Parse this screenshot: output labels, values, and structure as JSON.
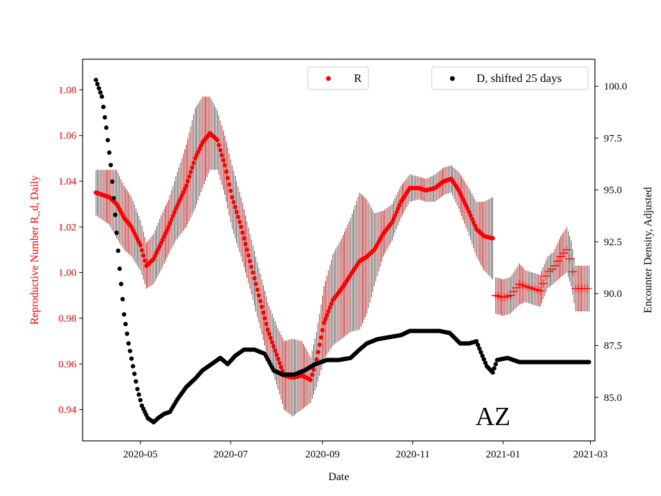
{
  "chart_data": {
    "type": "scatter",
    "title": "",
    "state_label": "AZ",
    "xlabel": "Date",
    "ylabel_left": "Reproductive Number R_d, Daily",
    "ylabel_right": "Encounter Density, Adjusted",
    "x_ticks": [
      {
        "date": "2020-05-01",
        "label": "2020-05"
      },
      {
        "date": "2020-07-01",
        "label": "2020-07"
      },
      {
        "date": "2020-09-01",
        "label": "2020-09"
      },
      {
        "date": "2020-11-01",
        "label": "2020-11"
      },
      {
        "date": "2021-01-01",
        "label": "2021-01"
      },
      {
        "date": "2021-03-01",
        "label": "2021-03"
      }
    ],
    "xlim": [
      "2020-03-23",
      "2021-03-04"
    ],
    "y_left_ticks": [
      "0.94",
      "0.96",
      "0.98",
      "1.00",
      "1.02",
      "1.04",
      "1.06",
      "1.08"
    ],
    "ylim_left": [
      0.9263,
      1.0934
    ],
    "y_right_ticks": [
      "85.0",
      "87.5",
      "90.0",
      "92.5",
      "95.0",
      "97.5",
      "100.0"
    ],
    "ylim_right": [
      82.9,
      101.3
    ],
    "colors": {
      "r_series": "#ff0000",
      "r_errorbar": "#8b0000",
      "d_series": "#000000",
      "left_axis": "#ff0000"
    },
    "legend_r": "R",
    "legend_d": "D, shifted 25 days",
    "r_points": [
      [
        "2020-04-01",
        1.035,
        0.01
      ],
      [
        "2020-04-10",
        1.033,
        0.012
      ],
      [
        "2020-04-15",
        1.03,
        0.015
      ],
      [
        "2020-04-20",
        1.024,
        0.014
      ],
      [
        "2020-04-25",
        1.02,
        0.013
      ],
      [
        "2020-05-01",
        1.012,
        0.011
      ],
      [
        "2020-05-05",
        1.003,
        0.01
      ],
      [
        "2020-05-10",
        1.006,
        0.011
      ],
      [
        "2020-05-15",
        1.013,
        0.012
      ],
      [
        "2020-05-20",
        1.02,
        0.012
      ],
      [
        "2020-05-25",
        1.028,
        0.014
      ],
      [
        "2020-06-01",
        1.038,
        0.018
      ],
      [
        "2020-06-07",
        1.05,
        0.022
      ],
      [
        "2020-06-12",
        1.057,
        0.02
      ],
      [
        "2020-06-17",
        1.061,
        0.016
      ],
      [
        "2020-06-22",
        1.058,
        0.013
      ],
      [
        "2020-06-27",
        1.047,
        0.013
      ],
      [
        "2020-07-02",
        1.033,
        0.014
      ],
      [
        "2020-07-08",
        1.02,
        0.013
      ],
      [
        "2020-07-14",
        1.005,
        0.012
      ],
      [
        "2020-07-20",
        0.99,
        0.012
      ],
      [
        "2020-07-26",
        0.975,
        0.012
      ],
      [
        "2020-08-01",
        0.964,
        0.013
      ],
      [
        "2020-08-06",
        0.955,
        0.015
      ],
      [
        "2020-08-12",
        0.954,
        0.017
      ],
      [
        "2020-08-18",
        0.955,
        0.015
      ],
      [
        "2020-08-24",
        0.953,
        0.01
      ],
      [
        "2020-08-28",
        0.962,
        0.012
      ],
      [
        "2020-09-02",
        0.978,
        0.016
      ],
      [
        "2020-09-08",
        0.988,
        0.02
      ],
      [
        "2020-09-14",
        0.993,
        0.022
      ],
      [
        "2020-09-20",
        0.999,
        0.025
      ],
      [
        "2020-09-26",
        1.005,
        0.03
      ],
      [
        "2020-10-01",
        1.007,
        0.025
      ],
      [
        "2020-10-06",
        1.01,
        0.016
      ],
      [
        "2020-10-12",
        1.017,
        0.01
      ],
      [
        "2020-10-18",
        1.022,
        0.008
      ],
      [
        "2020-10-24",
        1.031,
        0.007
      ],
      [
        "2020-10-30",
        1.037,
        0.006
      ],
      [
        "2020-11-05",
        1.037,
        0.005
      ],
      [
        "2020-11-10",
        1.036,
        0.005
      ],
      [
        "2020-11-16",
        1.037,
        0.006
      ],
      [
        "2020-11-22",
        1.04,
        0.006
      ],
      [
        "2020-11-27",
        1.041,
        0.006
      ],
      [
        "2020-12-02",
        1.036,
        0.008
      ],
      [
        "2020-12-08",
        1.028,
        0.01
      ],
      [
        "2020-12-14",
        1.019,
        0.012
      ],
      [
        "2020-12-19",
        1.016,
        0.015
      ],
      [
        "2020-12-25",
        1.015,
        0.018
      ]
    ],
    "r_plus_points": [
      [
        "2020-12-27",
        0.99,
        0.008
      ],
      [
        "2021-01-01",
        0.989,
        0.008
      ],
      [
        "2021-01-06",
        0.99,
        0.008
      ],
      [
        "2021-01-12",
        0.995,
        0.009
      ],
      [
        "2021-01-16",
        0.994,
        0.007
      ],
      [
        "2021-01-21",
        0.993,
        0.007
      ],
      [
        "2021-01-26",
        0.992,
        0.007
      ],
      [
        "2021-01-31",
        1.0,
        0.007
      ],
      [
        "2021-02-04",
        1.002,
        0.007
      ],
      [
        "2021-02-09",
        1.007,
        0.009
      ],
      [
        "2021-02-13",
        1.01,
        0.01
      ],
      [
        "2021-02-16",
        1.004,
        0.01
      ],
      [
        "2021-02-19",
        0.993,
        0.01
      ],
      [
        "2021-02-23",
        0.993,
        0.01
      ],
      [
        "2021-02-28",
        0.993,
        0.01
      ]
    ],
    "d_points": [
      [
        "2020-04-01",
        100.3
      ],
      [
        "2020-04-05",
        99.5
      ],
      [
        "2020-04-08",
        98.0
      ],
      [
        "2020-04-11",
        96.2
      ],
      [
        "2020-04-14",
        93.8
      ],
      [
        "2020-04-17",
        91.2
      ],
      [
        "2020-04-20",
        89.0
      ],
      [
        "2020-04-23",
        87.6
      ],
      [
        "2020-04-26",
        86.5
      ],
      [
        "2020-04-29",
        85.4
      ],
      [
        "2020-05-02",
        84.6
      ],
      [
        "2020-05-06",
        84.0
      ],
      [
        "2020-05-10",
        83.8
      ],
      [
        "2020-05-13",
        84.0
      ],
      [
        "2020-05-17",
        84.2
      ],
      [
        "2020-05-21",
        84.3
      ],
      [
        "2020-05-26",
        84.9
      ],
      [
        "2020-06-01",
        85.5
      ],
      [
        "2020-06-07",
        85.9
      ],
      [
        "2020-06-12",
        86.3
      ],
      [
        "2020-06-18",
        86.6
      ],
      [
        "2020-06-24",
        86.9
      ],
      [
        "2020-06-29",
        86.6
      ],
      [
        "2020-07-04",
        87.0
      ],
      [
        "2020-07-10",
        87.3
      ],
      [
        "2020-07-17",
        87.3
      ],
      [
        "2020-07-24",
        87.1
      ],
      [
        "2020-07-30",
        86.3
      ],
      [
        "2020-08-05",
        86.1
      ],
      [
        "2020-08-13",
        86.1
      ],
      [
        "2020-08-20",
        86.3
      ],
      [
        "2020-08-27",
        86.6
      ],
      [
        "2020-09-04",
        86.8
      ],
      [
        "2020-09-12",
        86.8
      ],
      [
        "2020-09-20",
        86.9
      ],
      [
        "2020-09-26",
        87.3
      ],
      [
        "2020-10-01",
        87.6
      ],
      [
        "2020-10-08",
        87.8
      ],
      [
        "2020-10-16",
        87.9
      ],
      [
        "2020-10-24",
        88.0
      ],
      [
        "2020-10-30",
        88.2
      ],
      [
        "2020-11-05",
        88.2
      ],
      [
        "2020-11-12",
        88.2
      ],
      [
        "2020-11-19",
        88.2
      ],
      [
        "2020-11-26",
        88.1
      ],
      [
        "2020-12-03",
        87.6
      ],
      [
        "2020-12-09",
        87.6
      ],
      [
        "2020-12-14",
        87.7
      ],
      [
        "2020-12-18",
        87.0
      ],
      [
        "2020-12-21",
        86.5
      ],
      [
        "2020-12-25",
        86.2
      ],
      [
        "2020-12-28",
        86.8
      ],
      [
        "2021-01-04",
        86.9
      ],
      [
        "2021-01-12",
        86.7
      ],
      [
        "2021-01-25",
        86.7
      ],
      [
        "2021-02-07",
        86.7
      ],
      [
        "2021-02-20",
        86.7
      ],
      [
        "2021-02-28",
        86.7
      ]
    ]
  }
}
